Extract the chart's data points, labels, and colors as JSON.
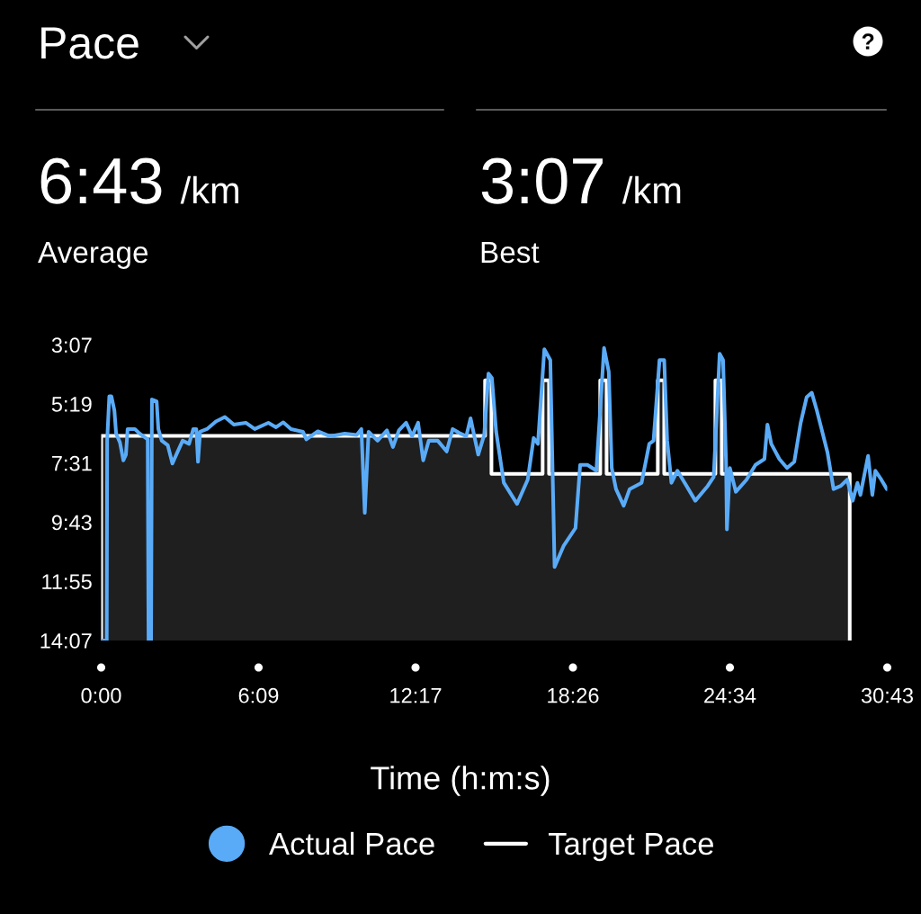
{
  "chart_data": {
    "type": "line",
    "title": "Pace",
    "xlabel": "Time (h:m:s)",
    "annotations": [
      "6:43",
      "/km",
      "Average",
      "3:07",
      "/km",
      "Best"
    ],
    "series": [
      {
        "name": "Actual Pace",
        "color": "#5aabf7",
        "x": [
          0,
          13,
          14,
          19,
          24,
          31,
          35,
          44,
          52,
          58,
          62,
          79,
          90,
          109,
          111,
          117,
          119,
          130,
          134,
          142,
          156,
          167,
          178,
          191,
          206,
          216,
          223,
          227,
          232,
          248,
          269,
          290,
          311,
          339,
          360,
          392,
          410,
          427,
          445,
          473,
          481,
          508,
          536,
          571,
          599,
          610,
          618,
          627,
          648,
          670,
          684,
          698,
          715,
          729,
          743,
          755,
          768,
          789,
          810,
          824,
          842,
          856,
          866,
          884,
          898,
          908,
          916,
          926,
          944,
          975,
          1000,
          1014,
          1024,
          1039,
          1053,
          1056,
          1063,
          1084,
          1112,
          1123,
          1140,
          1161,
          1179,
          1190,
          1197,
          1207,
          1225,
          1239,
          1267,
          1285,
          1295,
          1309,
          1320,
          1327,
          1337,
          1351,
          1393,
          1422,
          1436,
          1450,
          1458,
          1465,
          1467,
          1474,
          1488,
          1513,
          1534,
          1555,
          1562,
          1571,
          1590,
          1608,
          1625,
          1640,
          1654,
          1666,
          1678,
          1689,
          1703,
          1717,
          1734,
          1749,
          1762,
          1773,
          1780,
          1798,
          1808,
          1815,
          1829,
          1842
        ],
        "values": [
          847,
          847,
          401,
          302,
          302,
          334,
          385,
          405,
          445,
          432,
          375,
          375,
          385,
          398,
          847,
          847,
          309,
          313,
          375,
          401,
          411,
          452,
          428,
          401,
          408,
          375,
          375,
          448,
          381,
          375,
          358,
          348,
          365,
          361,
          375,
          361,
          371,
          360,
          375,
          381,
          398,
          380,
          391,
          385,
          388,
          375,
          562,
          381,
          401,
          378,
          415,
          378,
          361,
          391,
          361,
          445,
          401,
          401,
          425,
          375,
          385,
          391,
          351,
          432,
          388,
          251,
          261,
          381,
          495,
          542,
          488,
          395,
          408,
          197,
          221,
          361,
          683,
          636,
          596,
          455,
          455,
          468,
          194,
          247,
          462,
          509,
          546,
          509,
          495,
          408,
          401,
          221,
          221,
          401,
          495,
          468,
          535,
          502,
          482,
          207,
          221,
          448,
          599,
          462,
          515,
          488,
          455,
          442,
          365,
          408,
          442,
          462,
          448,
          361,
          304,
          294,
          334,
          375,
          428,
          509,
          502,
          488,
          535,
          495,
          522,
          435,
          522,
          468,
          488,
          509
        ]
      },
      {
        "name": "Target Pace",
        "type": "area",
        "color": "#ffffff",
        "x": [
          0,
          0,
          900,
          900,
          915,
          915,
          1035,
          1035,
          1050,
          1050,
          1170,
          1170,
          1185,
          1185,
          1305,
          1305,
          1320,
          1320,
          1440,
          1440,
          1455,
          1455,
          1755,
          1755
        ],
        "values": [
          847,
          390,
          390,
          266,
          266,
          475,
          475,
          266,
          266,
          475,
          475,
          266,
          266,
          475,
          475,
          266,
          266,
          475,
          475,
          266,
          266,
          475,
          475,
          847
        ]
      }
    ],
    "xlim": [
      0,
      1843
    ],
    "xticks": [
      {
        "value": 0,
        "label": "0:00"
      },
      {
        "value": 369,
        "label": "6:09"
      },
      {
        "value": 737,
        "label": "12:17"
      },
      {
        "value": 1106,
        "label": "18:26"
      },
      {
        "value": 1474,
        "label": "24:34"
      },
      {
        "value": 1843,
        "label": "30:43"
      }
    ],
    "ylim": [
      847,
      187
    ],
    "yticks": [
      {
        "value": 187,
        "label": "3:07"
      },
      {
        "value": 319,
        "label": "5:19"
      },
      {
        "value": 451,
        "label": "7:31"
      },
      {
        "value": 583,
        "label": "9:43"
      },
      {
        "value": 715,
        "label": "11:55"
      },
      {
        "value": 847,
        "label": "14:07"
      }
    ],
    "legend": "bottom"
  }
}
